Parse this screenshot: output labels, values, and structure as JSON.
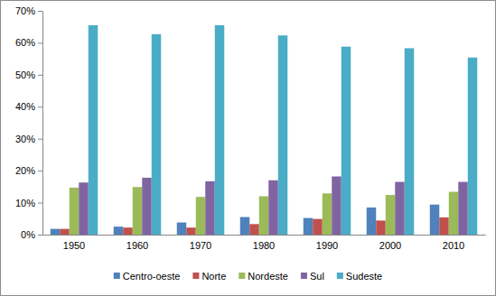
{
  "chart_data": {
    "type": "bar",
    "categories": [
      "1950",
      "1960",
      "1970",
      "1980",
      "1990",
      "2000",
      "2010"
    ],
    "series": [
      {
        "name": "Centro-oeste",
        "color": "#4F81BD",
        "values": [
          1.8,
          2.5,
          3.8,
          5.5,
          5.2,
          8.5,
          9.4
        ]
      },
      {
        "name": "Norte",
        "color": "#C0504D",
        "values": [
          1.8,
          2.2,
          2.2,
          3.3,
          4.9,
          4.4,
          5.4
        ]
      },
      {
        "name": "Nordeste",
        "color": "#9BBB59",
        "values": [
          14.7,
          14.9,
          11.8,
          12.0,
          12.9,
          12.4,
          13.4
        ]
      },
      {
        "name": "Sul",
        "color": "#8064A2",
        "values": [
          16.3,
          17.8,
          16.7,
          17.0,
          18.2,
          16.5,
          16.5
        ]
      },
      {
        "name": "Sudeste",
        "color": "#4BACC6",
        "values": [
          65.5,
          62.7,
          65.5,
          62.3,
          58.8,
          58.3,
          55.4
        ]
      }
    ],
    "ylim": [
      0,
      70
    ],
    "yticks": [
      {
        "value": 0,
        "label": "0%"
      },
      {
        "value": 10,
        "label": "10%"
      },
      {
        "value": 20,
        "label": "20%"
      },
      {
        "value": 30,
        "label": "30%"
      },
      {
        "value": 40,
        "label": "40%"
      },
      {
        "value": 50,
        "label": "50%"
      },
      {
        "value": 60,
        "label": "60%"
      },
      {
        "value": 70,
        "label": "70%"
      }
    ],
    "grid": false,
    "legend": "bottom"
  }
}
